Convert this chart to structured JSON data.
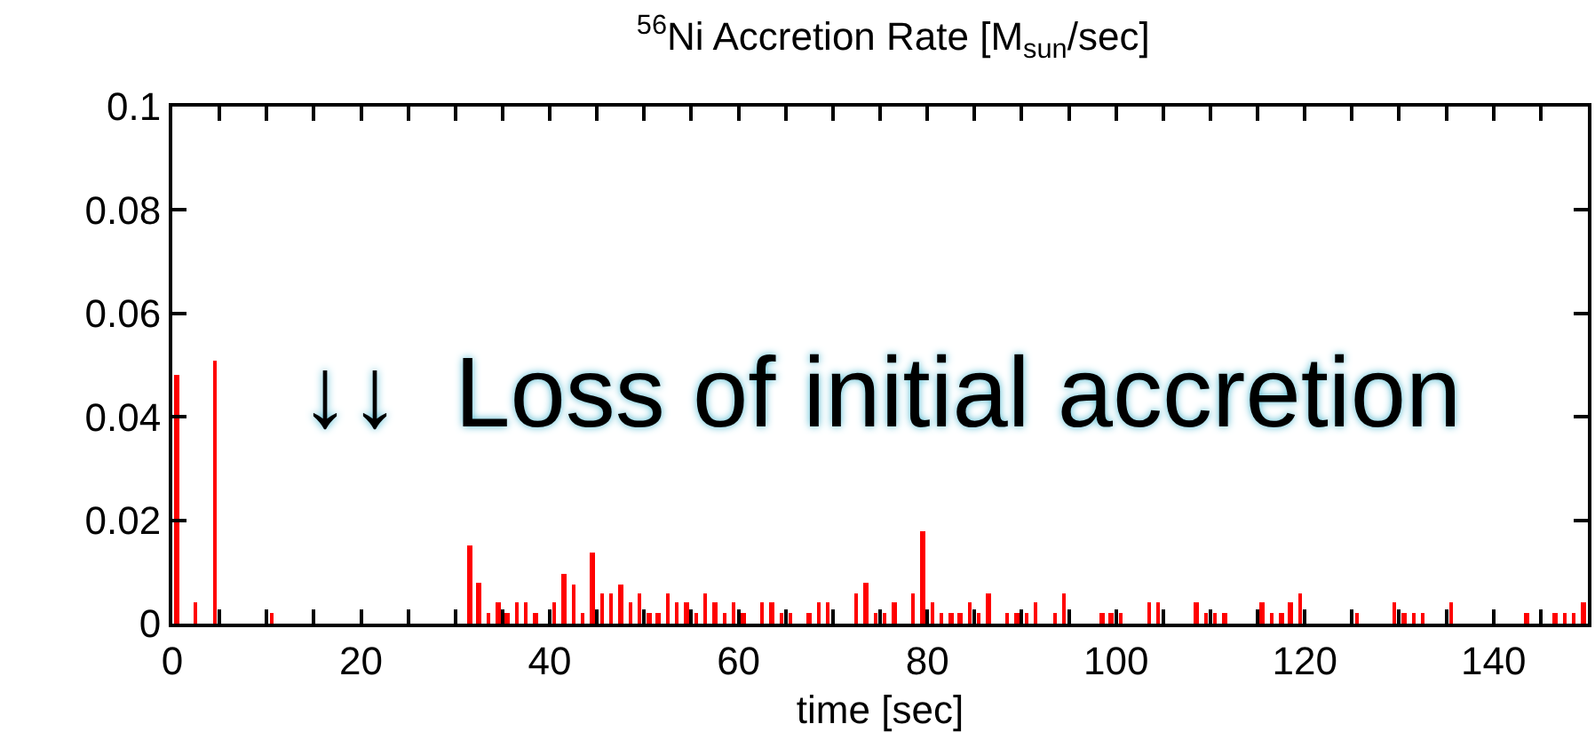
{
  "chart_data": {
    "type": "bar",
    "title": "$^{56}$Ni Accretion Rate [M$_{sun}$/sec]",
    "xlabel": "time [sec]",
    "x": [
      0.5,
      2.5,
      4.5,
      10.5,
      31.5,
      32.5,
      33.5,
      34.5,
      35.5,
      36.5,
      37.5,
      38.5,
      40.5,
      41.5,
      42.5,
      43.5,
      44.5,
      45.5,
      46.5,
      47.5,
      48.5,
      49.5,
      50.5,
      51.5,
      52.5,
      53.5,
      54.5,
      55.5,
      56.5,
      57.5,
      58.5,
      59.5,
      60.5,
      62.5,
      63.5,
      64.5,
      65.5,
      67.5,
      68.5,
      69.5,
      72.5,
      73.5,
      74.5,
      75.5,
      76.5,
      78.5,
      79.5,
      80.5,
      81.5,
      82.5,
      83.5,
      84.5,
      85.5,
      86.5,
      88.5,
      89.5,
      90.5,
      91.5,
      93.5,
      94.5,
      98.5,
      99.5,
      100.5,
      103.5,
      104.5,
      108.5,
      109.5,
      110.5,
      111.5,
      115.5,
      116.5,
      117.5,
      118.5,
      119.5,
      125.5,
      129.5,
      130.5,
      131.5,
      132.5,
      135.5,
      143.5,
      146.5,
      147.5,
      148.5,
      149.5
    ],
    "values": [
      0.048,
      0.004,
      0.051,
      0.002,
      0.015,
      0.008,
      0.002,
      0.004,
      0.002,
      0.004,
      0.004,
      0.002,
      0.004,
      0.0095,
      0.0075,
      0.002,
      0.0136,
      0.006,
      0.006,
      0.0075,
      0.004,
      0.006,
      0.002,
      0.002,
      0.006,
      0.004,
      0.004,
      0.002,
      0.006,
      0.004,
      0.002,
      0.004,
      0.002,
      0.004,
      0.004,
      0.002,
      0.002,
      0.002,
      0.004,
      0.004,
      0.006,
      0.008,
      0.002,
      0.002,
      0.004,
      0.006,
      0.018,
      0.004,
      0.002,
      0.002,
      0.002,
      0.004,
      0.002,
      0.006,
      0.002,
      0.002,
      0.002,
      0.004,
      0.002,
      0.006,
      0.002,
      0.002,
      0.002,
      0.004,
      0.004,
      0.004,
      0.002,
      0.002,
      0.002,
      0.004,
      0.002,
      0.002,
      0.004,
      0.006,
      0.002,
      0.004,
      0.002,
      0.002,
      0.002,
      0.004,
      0.002,
      0.002,
      0.002,
      0.002,
      0.004
    ],
    "color": "#ff0000",
    "xlim": [
      0,
      150
    ],
    "xticks": [
      0,
      {
        "value": 5,
        "label": null
      },
      {
        "value": 10,
        "label": null
      },
      {
        "value": 15,
        "label": null
      },
      20,
      {
        "value": 25,
        "label": null
      },
      {
        "value": 30,
        "label": null
      },
      {
        "value": 35,
        "label": null
      },
      40,
      {
        "value": 45,
        "label": null
      },
      {
        "value": 50,
        "label": null
      },
      {
        "value": 55,
        "label": null
      },
      60,
      {
        "value": 65,
        "label": null
      },
      {
        "value": 70,
        "label": null
      },
      {
        "value": 75,
        "label": null
      },
      80,
      {
        "value": 85,
        "label": null
      },
      {
        "value": 90,
        "label": null
      },
      {
        "value": 95,
        "label": null
      },
      100,
      {
        "value": 105,
        "label": null
      },
      {
        "value": 110,
        "label": null
      },
      {
        "value": 115,
        "label": null
      },
      120,
      {
        "value": 125,
        "label": null
      },
      {
        "value": 130,
        "label": null
      },
      {
        "value": 135,
        "label": null
      },
      140,
      {
        "value": 145,
        "label": null
      }
    ],
    "ylim": [
      0,
      0.1
    ],
    "yticks": [
      0,
      0.02,
      0.04,
      0.06,
      0.08,
      0.1
    ],
    "annotations": [
      "↓↓  Loss of initial accretion"
    ]
  }
}
